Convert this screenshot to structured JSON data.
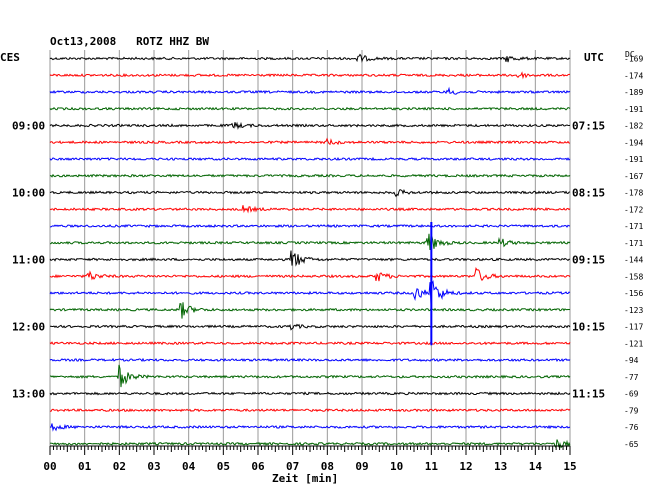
{
  "chart_data": {
    "type": "line",
    "title": "Oct13,2008   ROTZ HHZ BW",
    "left_zone_label": "CES",
    "right_zone_label": "UTC",
    "dc_label": "DC",
    "xlabel": "Zeit [min]",
    "xlim": [
      0,
      15
    ],
    "x_ticks": [
      "00",
      "01",
      "02",
      "03",
      "04",
      "05",
      "06",
      "07",
      "08",
      "09",
      "10",
      "11",
      "12",
      "13",
      "14",
      "15"
    ],
    "trace_colors": [
      "#000000",
      "#ff0000",
      "#0000ff",
      "#006400"
    ],
    "left_time_labels": [
      {
        "row": 4,
        "label": "09:00"
      },
      {
        "row": 8,
        "label": "10:00"
      },
      {
        "row": 12,
        "label": "11:00"
      },
      {
        "row": 16,
        "label": "12:00"
      },
      {
        "row": 20,
        "label": "13:00"
      }
    ],
    "right_time_labels": [
      {
        "row": 4,
        "label": "07:15"
      },
      {
        "row": 8,
        "label": "08:15"
      },
      {
        "row": 12,
        "label": "09:15"
      },
      {
        "row": 16,
        "label": "10:15"
      },
      {
        "row": 20,
        "label": "11:15"
      }
    ],
    "dc_values": [
      "-169",
      "-174",
      "-189",
      "-191",
      "-182",
      "-194",
      "-191",
      "-167",
      "-178",
      "-172",
      "-171",
      "-171",
      "-144",
      "-158",
      "-156",
      "-123",
      "-117",
      "-121",
      "-94",
      "-77",
      "-69",
      "-79",
      "-76",
      "-65"
    ],
    "events": [
      {
        "row": 0,
        "minute": 8.9,
        "amplitude": 4
      },
      {
        "row": 0,
        "minute": 13.2,
        "amplitude": 3
      },
      {
        "row": 1,
        "minute": 13.5,
        "amplitude": 3
      },
      {
        "row": 2,
        "minute": 11.5,
        "amplitude": 3
      },
      {
        "row": 4,
        "minute": 5.3,
        "amplitude": 3
      },
      {
        "row": 5,
        "minute": 8.0,
        "amplitude": 3
      },
      {
        "row": 8,
        "minute": 10.0,
        "amplitude": 3
      },
      {
        "row": 9,
        "minute": 5.6,
        "amplitude": 3
      },
      {
        "row": 11,
        "minute": 10.9,
        "amplitude": 12
      },
      {
        "row": 11,
        "minute": 13.0,
        "amplitude": 4
      },
      {
        "row": 12,
        "minute": 7.0,
        "amplitude": 10
      },
      {
        "row": 13,
        "minute": 1.1,
        "amplitude": 5
      },
      {
        "row": 13,
        "minute": 9.4,
        "amplitude": 6
      },
      {
        "row": 13,
        "minute": 12.3,
        "amplitude": 8
      },
      {
        "row": 14,
        "minute": 10.5,
        "amplitude": 9
      },
      {
        "row": 14,
        "minute": 11.0,
        "amplitude": 16
      },
      {
        "row": 15,
        "minute": 3.8,
        "amplitude": 8
      },
      {
        "row": 16,
        "minute": 6.9,
        "amplitude": 3
      },
      {
        "row": 19,
        "minute": 2.0,
        "amplitude": 12
      },
      {
        "row": 22,
        "minute": 0.1,
        "amplitude": 3
      },
      {
        "row": 23,
        "minute": 14.6,
        "amplitude": 5
      }
    ],
    "tall_spike": {
      "minute": 11.0,
      "from_row": 10,
      "to_row": 17
    },
    "grid": true,
    "legend": "none"
  }
}
